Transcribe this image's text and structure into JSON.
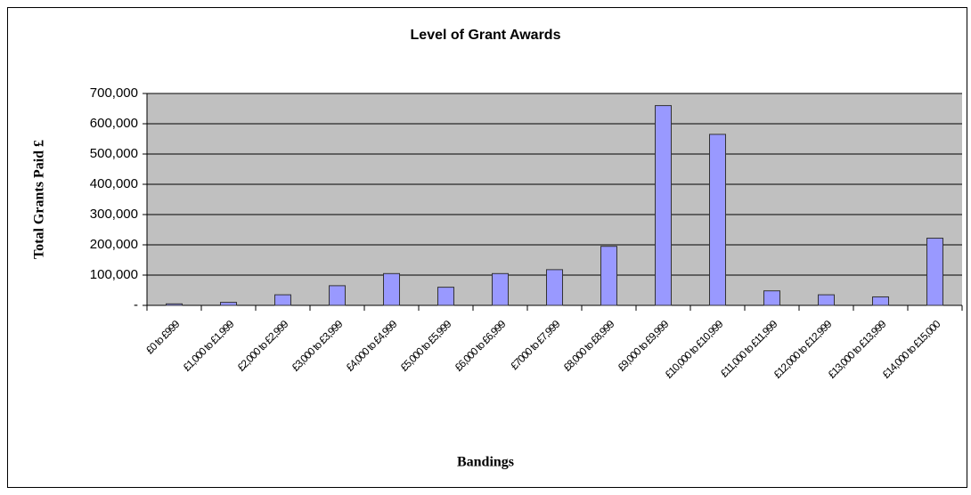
{
  "chart_data": {
    "type": "bar",
    "title": "Level of Grant Awards",
    "x_label": "Bandings",
    "y_label": "Total Grants Paid £",
    "categories": [
      "£0 to £999",
      "£1,000 to £1,999",
      "£2,000 to £2,999",
      "£3,000 to £3,999",
      "£4,000 to £4,999",
      "£5,000 to £5,999",
      "£6,000 to £6,999",
      "£7000 to £7,999",
      "£8,000 to £8,999",
      "£9,000 to £9,999",
      "£10,000 to £10,999",
      "£11,000 to £11,999",
      "£12,000 to £12,999",
      "£13,000 to £13,999",
      "£14,000 to £15,000"
    ],
    "values": [
      5000,
      10000,
      35000,
      65000,
      105000,
      60000,
      105000,
      118000,
      195000,
      660000,
      565000,
      48000,
      35000,
      28000,
      222000
    ],
    "color": "#9999ff",
    "ylim": [
      0,
      700000
    ],
    "yticks": [
      {
        "value": 0,
        "label": "-"
      },
      {
        "value": 100000,
        "label": "100,000"
      },
      {
        "value": 200000,
        "label": "200,000"
      },
      {
        "value": 300000,
        "label": "300,000"
      },
      {
        "value": 400000,
        "label": "400,000"
      },
      {
        "value": 500000,
        "label": "500,000"
      },
      {
        "value": 600000,
        "label": "600,000"
      },
      {
        "value": 700000,
        "label": "700,000"
      }
    ],
    "grid": true
  }
}
